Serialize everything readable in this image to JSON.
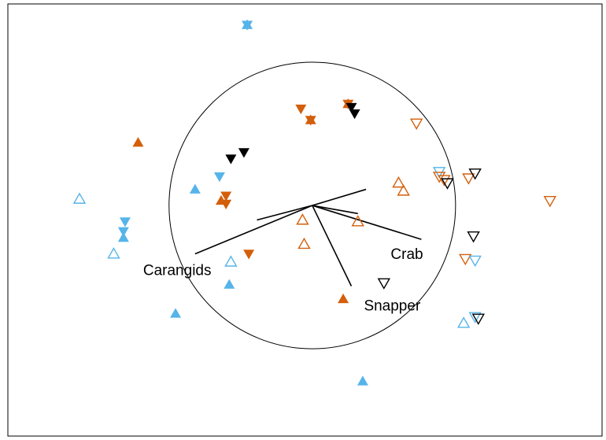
{
  "chart_data": {
    "type": "scatter",
    "title": "",
    "xlabel": "",
    "ylabel": "",
    "xlim": [
      -1.87,
      1.78
    ],
    "ylim": [
      -1.43,
      1.25
    ],
    "grid": false,
    "circle_radius": 0.88,
    "colors": {
      "orange": "#d35f0a",
      "blue": "#56b4e9",
      "black": "#000000"
    },
    "vectors": [
      {
        "label": "Carangids",
        "x": -0.72,
        "y": -0.3,
        "show_label": true
      },
      {
        "label": "Crab",
        "x": 0.67,
        "y": -0.21,
        "show_label": true
      },
      {
        "label": "Snapper",
        "x": 0.24,
        "y": -0.5,
        "show_label": true
      },
      {
        "label": "",
        "x": -0.34,
        "y": -0.09,
        "show_label": false
      },
      {
        "label": "",
        "x": 0.33,
        "y": 0.1,
        "show_label": false
      },
      {
        "label": "",
        "x": 0.28,
        "y": -0.05,
        "show_label": false
      }
    ],
    "points": [
      {
        "x": -0.4,
        "y": 1.12,
        "color": "blue",
        "shape": "star"
      },
      {
        "x": -0.01,
        "y": 0.53,
        "color": "orange",
        "shape": "star"
      },
      {
        "x": 0.22,
        "y": 0.63,
        "color": "orange",
        "shape": "star"
      },
      {
        "x": -0.07,
        "y": 0.6,
        "color": "orange",
        "shape": "tri-down-filled"
      },
      {
        "x": 0.24,
        "y": 0.61,
        "color": "black",
        "shape": "tri-down-filled"
      },
      {
        "x": 0.26,
        "y": 0.57,
        "color": "black",
        "shape": "tri-down-filled"
      },
      {
        "x": -0.5,
        "y": 0.29,
        "color": "black",
        "shape": "tri-down-filled"
      },
      {
        "x": -0.42,
        "y": 0.33,
        "color": "black",
        "shape": "tri-down-filled"
      },
      {
        "x": -0.57,
        "y": 0.18,
        "color": "blue",
        "shape": "tri-down-filled"
      },
      {
        "x": -0.53,
        "y": 0.06,
        "color": "orange",
        "shape": "tri-down-filled"
      },
      {
        "x": -0.53,
        "y": 0.01,
        "color": "orange",
        "shape": "tri-down-filled"
      },
      {
        "x": -1.15,
        "y": -0.1,
        "color": "blue",
        "shape": "tri-down-filled"
      },
      {
        "x": -1.16,
        "y": -0.16,
        "color": "blue",
        "shape": "tri-down-filled"
      },
      {
        "x": -0.39,
        "y": -0.3,
        "color": "orange",
        "shape": "tri-down-filled"
      },
      {
        "x": -1.07,
        "y": 0.39,
        "color": "orange",
        "shape": "tri-up-filled"
      },
      {
        "x": -0.72,
        "y": 0.1,
        "color": "blue",
        "shape": "tri-up-filled"
      },
      {
        "x": -0.56,
        "y": 0.03,
        "color": "orange",
        "shape": "tri-up-filled"
      },
      {
        "x": -1.16,
        "y": -0.2,
        "color": "blue",
        "shape": "tri-up-filled"
      },
      {
        "x": -0.51,
        "y": -0.49,
        "color": "blue",
        "shape": "tri-up-filled"
      },
      {
        "x": -0.84,
        "y": -0.67,
        "color": "blue",
        "shape": "tri-up-filled"
      },
      {
        "x": 0.19,
        "y": -0.58,
        "color": "orange",
        "shape": "tri-up-filled"
      },
      {
        "x": 0.31,
        "y": -1.09,
        "color": "blue",
        "shape": "tri-up-filled"
      },
      {
        "x": -1.43,
        "y": 0.04,
        "color": "blue",
        "shape": "tri-up-open"
      },
      {
        "x": -1.22,
        "y": -0.3,
        "color": "blue",
        "shape": "tri-up-open"
      },
      {
        "x": -0.5,
        "y": -0.35,
        "color": "blue",
        "shape": "tri-up-open"
      },
      {
        "x": -0.06,
        "y": -0.09,
        "color": "orange",
        "shape": "tri-up-open"
      },
      {
        "x": -0.05,
        "y": -0.24,
        "color": "orange",
        "shape": "tri-up-open"
      },
      {
        "x": 0.28,
        "y": -0.1,
        "color": "orange",
        "shape": "tri-up-open"
      },
      {
        "x": 0.53,
        "y": 0.14,
        "color": "orange",
        "shape": "tri-up-open"
      },
      {
        "x": 0.56,
        "y": 0.09,
        "color": "orange",
        "shape": "tri-up-open"
      },
      {
        "x": 0.93,
        "y": -0.73,
        "color": "blue",
        "shape": "tri-up-open"
      },
      {
        "x": 0.64,
        "y": 0.51,
        "color": "orange",
        "shape": "tri-down-open"
      },
      {
        "x": 0.78,
        "y": 0.21,
        "color": "blue",
        "shape": "tri-down-open"
      },
      {
        "x": 0.78,
        "y": 0.18,
        "color": "orange",
        "shape": "tri-down-open"
      },
      {
        "x": 0.81,
        "y": 0.16,
        "color": "orange",
        "shape": "tri-down-open"
      },
      {
        "x": 0.83,
        "y": 0.14,
        "color": "black",
        "shape": "tri-down-open"
      },
      {
        "x": 0.96,
        "y": 0.17,
        "color": "orange",
        "shape": "tri-down-open"
      },
      {
        "x": 1.0,
        "y": 0.2,
        "color": "black",
        "shape": "tri-down-open"
      },
      {
        "x": 1.46,
        "y": 0.03,
        "color": "orange",
        "shape": "tri-down-open"
      },
      {
        "x": 0.99,
        "y": -0.19,
        "color": "black",
        "shape": "tri-down-open"
      },
      {
        "x": 0.94,
        "y": -0.33,
        "color": "orange",
        "shape": "tri-down-open"
      },
      {
        "x": 1.0,
        "y": -0.34,
        "color": "blue",
        "shape": "tri-down-open"
      },
      {
        "x": 0.44,
        "y": -0.48,
        "color": "black",
        "shape": "tri-down-open"
      },
      {
        "x": 1.0,
        "y": -0.69,
        "color": "blue",
        "shape": "tri-down-open"
      },
      {
        "x": 1.02,
        "y": -0.7,
        "color": "black",
        "shape": "tri-down-open"
      }
    ]
  }
}
